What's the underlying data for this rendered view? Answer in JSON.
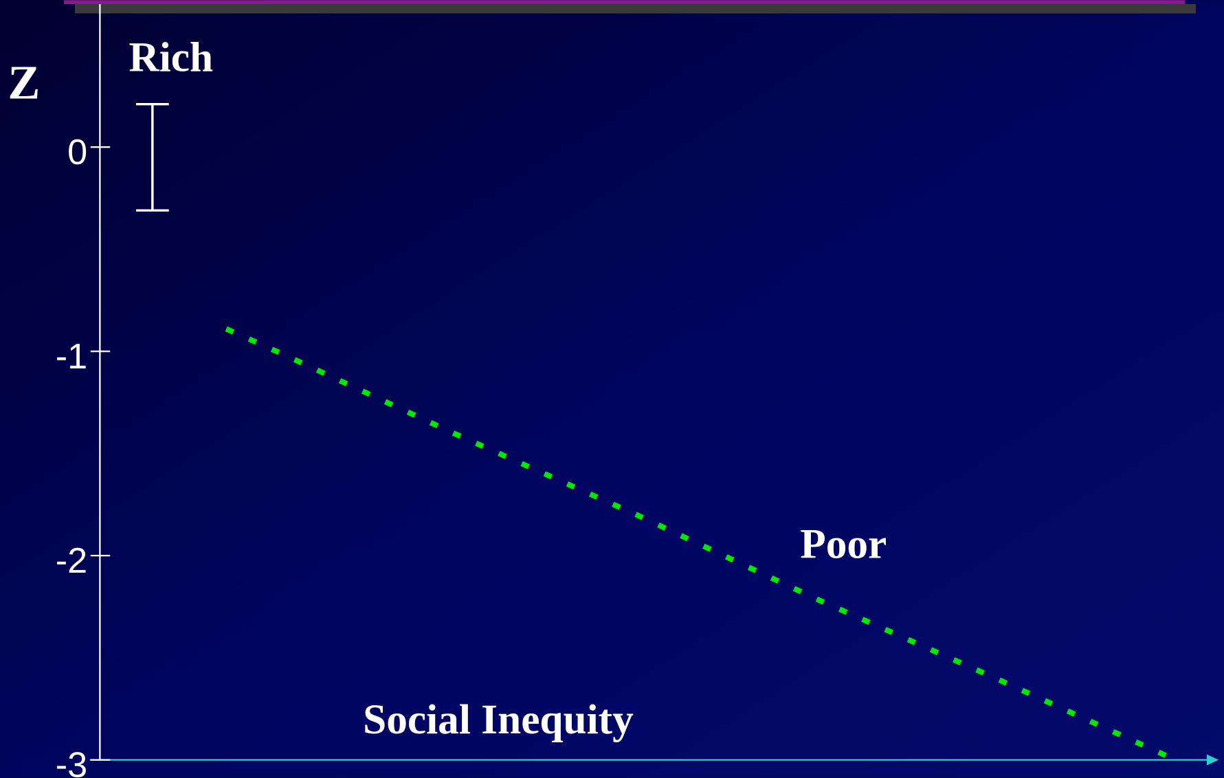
{
  "chart_data": {
    "type": "line",
    "ylabel": "Z",
    "xlabel": "Social Inequity",
    "xlim": [
      0,
      10
    ],
    "ylim": [
      -3,
      0.7
    ],
    "yticks": [
      0,
      -1,
      -2,
      -3
    ],
    "series": [
      {
        "name": "Poor",
        "color": "#00e600",
        "x": [
          1.13,
          1.62,
          3.16,
          4.8,
          6.4,
          8.01,
          9.58
        ],
        "values": [
          -0.89,
          -1.01,
          -1.4,
          -1.8,
          -2.21,
          -2.6,
          -2.99
        ]
      }
    ],
    "rich": {
      "label": "Rich",
      "x": 0.47,
      "value": -0.05,
      "error": 0.26
    }
  }
}
